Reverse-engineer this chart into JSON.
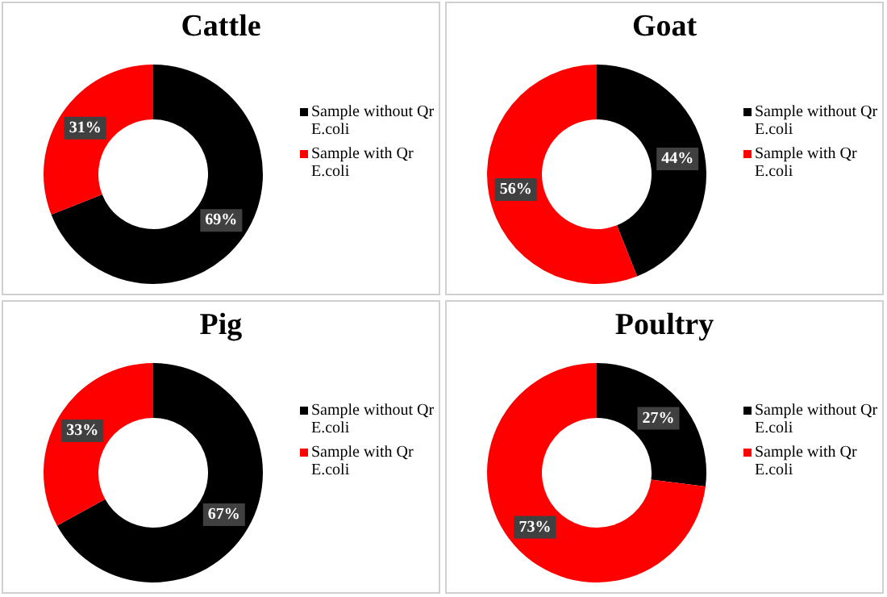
{
  "chart_data": [
    {
      "type": "donut",
      "title": "Cattle",
      "categories": [
        "Sample without Qr E.coli",
        "Sample with Qr E.coli"
      ],
      "values": [
        69,
        31
      ],
      "colors": [
        "#000000",
        "#ff0000"
      ],
      "value_labels": [
        "69%",
        "31%"
      ],
      "legend": "right"
    },
    {
      "type": "donut",
      "title": "Goat",
      "categories": [
        "Sample without Qr E.coli",
        "Sample with Qr E.coli"
      ],
      "values": [
        44,
        56
      ],
      "colors": [
        "#000000",
        "#ff0000"
      ],
      "value_labels": [
        "44%",
        "56%"
      ],
      "legend": "right"
    },
    {
      "type": "donut",
      "title": "Pig",
      "categories": [
        "Sample without Qr E.coli",
        "Sample with Qr E.coli"
      ],
      "values": [
        67,
        33
      ],
      "colors": [
        "#000000",
        "#ff0000"
      ],
      "value_labels": [
        "67%",
        "33%"
      ],
      "legend": "right"
    },
    {
      "type": "donut",
      "title": "Poultry",
      "categories": [
        "Sample without Qr E.coli",
        "Sample with Qr E.coli"
      ],
      "values": [
        27,
        73
      ],
      "colors": [
        "#000000",
        "#ff0000"
      ],
      "value_labels": [
        "27%",
        "73%"
      ],
      "legend": "right"
    }
  ]
}
